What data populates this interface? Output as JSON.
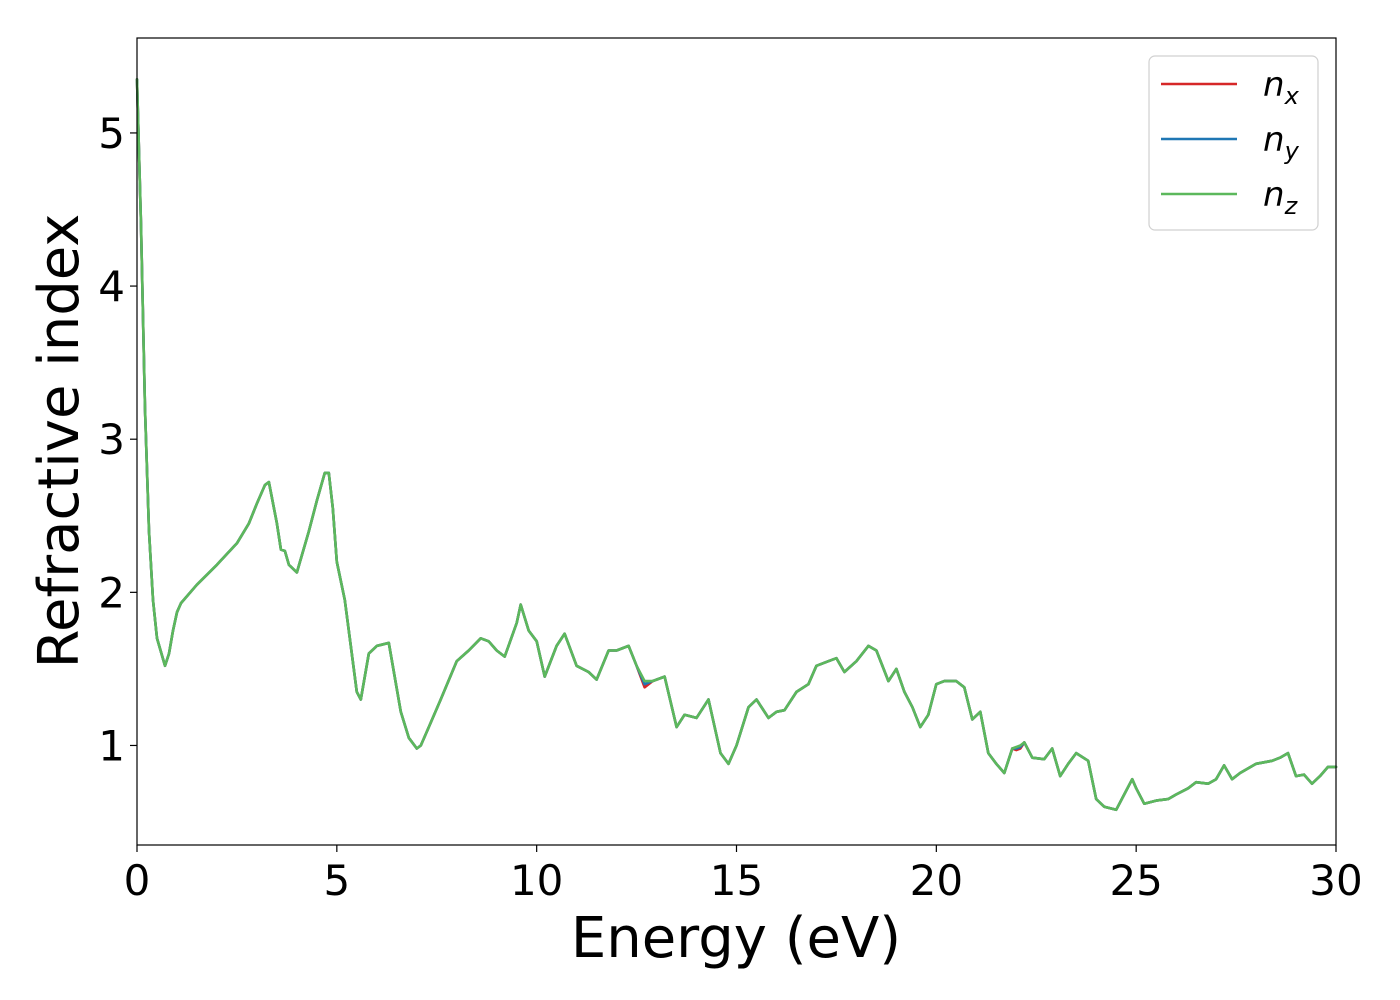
{
  "chart_data": {
    "type": "line",
    "xlabel": "Energy (eV)",
    "ylabel": "Refractive index",
    "xlim": [
      0,
      30
    ],
    "ylim": [
      0.35,
      5.62
    ],
    "xticks": [
      0,
      5,
      10,
      15,
      20,
      25,
      30
    ],
    "yticks": [
      1,
      2,
      3,
      4,
      5
    ],
    "xtick_labels": [
      "0",
      "5",
      "10",
      "15",
      "20",
      "25",
      "30"
    ],
    "ytick_labels": [
      "1",
      "2",
      "3",
      "4",
      "5"
    ],
    "grid": false,
    "legend_position": "top-right",
    "x": [
      0.0,
      0.1,
      0.2,
      0.3,
      0.4,
      0.5,
      0.7,
      0.8,
      0.9,
      1.0,
      1.1,
      1.5,
      2.0,
      2.5,
      2.8,
      3.0,
      3.2,
      3.3,
      3.5,
      3.6,
      3.7,
      3.8,
      4.0,
      4.1,
      4.3,
      4.5,
      4.7,
      4.8,
      4.9,
      5.0,
      5.2,
      5.5,
      5.6,
      5.8,
      6.0,
      6.3,
      6.6,
      6.8,
      7.0,
      7.1,
      7.3,
      7.6,
      8.0,
      8.3,
      8.6,
      8.8,
      9.0,
      9.2,
      9.5,
      9.6,
      9.8,
      10.0,
      10.2,
      10.5,
      10.7,
      11.0,
      11.3,
      11.5,
      11.8,
      12.0,
      12.3,
      12.5,
      12.7,
      12.9,
      13.2,
      13.5,
      13.7,
      14.0,
      14.3,
      14.6,
      14.8,
      15.0,
      15.3,
      15.5,
      15.8,
      16.0,
      16.2,
      16.5,
      16.8,
      17.0,
      17.3,
      17.5,
      17.7,
      18.0,
      18.3,
      18.5,
      18.8,
      19.0,
      19.2,
      19.4,
      19.6,
      19.8,
      20.0,
      20.2,
      20.5,
      20.7,
      20.9,
      21.1,
      21.3,
      21.5,
      21.7,
      21.9,
      22.0,
      22.1,
      22.2,
      22.4,
      22.7,
      22.9,
      23.1,
      23.3,
      23.5,
      23.8,
      24.0,
      24.2,
      24.5,
      24.7,
      24.9,
      25.0,
      25.2,
      25.5,
      25.8,
      26.0,
      26.3,
      26.5,
      26.8,
      27.0,
      27.2,
      27.4,
      27.6,
      28.0,
      28.4,
      28.6,
      28.8,
      29.0,
      29.2,
      29.4,
      29.6,
      29.8,
      30.0
    ],
    "series": [
      {
        "name": "n_x",
        "color": "#d62728",
        "values": [
          5.35,
          4.4,
          3.2,
          2.4,
          1.95,
          1.7,
          1.52,
          1.6,
          1.75,
          1.87,
          1.93,
          2.05,
          2.18,
          2.32,
          2.45,
          2.58,
          2.7,
          2.72,
          2.45,
          2.28,
          2.27,
          2.18,
          2.13,
          2.22,
          2.4,
          2.6,
          2.78,
          2.78,
          2.55,
          2.2,
          1.95,
          1.35,
          1.3,
          1.6,
          1.65,
          1.67,
          1.22,
          1.05,
          0.98,
          1.0,
          1.12,
          1.3,
          1.55,
          1.62,
          1.7,
          1.68,
          1.62,
          1.58,
          1.8,
          1.92,
          1.75,
          1.68,
          1.45,
          1.65,
          1.73,
          1.52,
          1.48,
          1.43,
          1.62,
          1.62,
          1.65,
          1.52,
          1.38,
          1.42,
          1.45,
          1.12,
          1.2,
          1.18,
          1.3,
          0.95,
          0.88,
          1.0,
          1.25,
          1.3,
          1.18,
          1.22,
          1.23,
          1.35,
          1.4,
          1.52,
          1.55,
          1.57,
          1.48,
          1.55,
          1.65,
          1.62,
          1.42,
          1.5,
          1.35,
          1.25,
          1.12,
          1.2,
          1.4,
          1.42,
          1.42,
          1.38,
          1.17,
          1.22,
          0.95,
          0.88,
          0.82,
          0.98,
          0.97,
          0.98,
          1.02,
          0.92,
          0.91,
          0.98,
          0.8,
          0.88,
          0.95,
          0.9,
          0.65,
          0.6,
          0.58,
          0.68,
          0.78,
          0.72,
          0.62,
          0.64,
          0.65,
          0.68,
          0.72,
          0.76,
          0.75,
          0.78,
          0.87,
          0.78,
          0.82,
          0.88,
          0.9,
          0.92,
          0.95,
          0.8,
          0.81,
          0.75,
          0.8,
          0.86,
          0.86
        ]
      },
      {
        "name": "n_y",
        "color": "#1f77b4",
        "values": [
          5.35,
          4.4,
          3.2,
          2.4,
          1.95,
          1.7,
          1.52,
          1.6,
          1.75,
          1.87,
          1.93,
          2.05,
          2.18,
          2.32,
          2.45,
          2.58,
          2.7,
          2.72,
          2.45,
          2.28,
          2.27,
          2.18,
          2.13,
          2.22,
          2.4,
          2.6,
          2.78,
          2.78,
          2.55,
          2.2,
          1.95,
          1.35,
          1.3,
          1.6,
          1.65,
          1.67,
          1.22,
          1.05,
          0.98,
          1.0,
          1.12,
          1.3,
          1.55,
          1.62,
          1.7,
          1.68,
          1.62,
          1.58,
          1.8,
          1.92,
          1.75,
          1.68,
          1.45,
          1.65,
          1.73,
          1.52,
          1.48,
          1.43,
          1.62,
          1.62,
          1.65,
          1.52,
          1.4,
          1.42,
          1.45,
          1.12,
          1.2,
          1.18,
          1.3,
          0.95,
          0.88,
          1.0,
          1.25,
          1.3,
          1.18,
          1.22,
          1.23,
          1.35,
          1.4,
          1.52,
          1.55,
          1.57,
          1.48,
          1.55,
          1.65,
          1.62,
          1.42,
          1.5,
          1.35,
          1.25,
          1.12,
          1.2,
          1.4,
          1.42,
          1.42,
          1.38,
          1.17,
          1.22,
          0.95,
          0.88,
          0.82,
          0.98,
          0.98,
          0.99,
          1.02,
          0.92,
          0.91,
          0.98,
          0.8,
          0.88,
          0.95,
          0.9,
          0.65,
          0.6,
          0.58,
          0.68,
          0.78,
          0.72,
          0.62,
          0.64,
          0.65,
          0.68,
          0.72,
          0.76,
          0.75,
          0.78,
          0.87,
          0.78,
          0.82,
          0.88,
          0.9,
          0.92,
          0.95,
          0.8,
          0.81,
          0.75,
          0.8,
          0.86,
          0.86
        ]
      },
      {
        "name": "n_z",
        "color": "#5cb85c",
        "values": [
          5.35,
          4.4,
          3.2,
          2.4,
          1.95,
          1.7,
          1.52,
          1.6,
          1.75,
          1.87,
          1.93,
          2.05,
          2.18,
          2.32,
          2.45,
          2.58,
          2.7,
          2.72,
          2.45,
          2.28,
          2.27,
          2.18,
          2.13,
          2.22,
          2.4,
          2.6,
          2.78,
          2.78,
          2.55,
          2.2,
          1.95,
          1.35,
          1.3,
          1.6,
          1.65,
          1.67,
          1.22,
          1.05,
          0.98,
          1.0,
          1.12,
          1.3,
          1.55,
          1.62,
          1.7,
          1.68,
          1.62,
          1.58,
          1.8,
          1.92,
          1.75,
          1.68,
          1.45,
          1.65,
          1.73,
          1.52,
          1.48,
          1.43,
          1.62,
          1.62,
          1.65,
          1.52,
          1.42,
          1.42,
          1.45,
          1.12,
          1.2,
          1.18,
          1.3,
          0.95,
          0.88,
          1.0,
          1.25,
          1.3,
          1.18,
          1.22,
          1.23,
          1.35,
          1.4,
          1.52,
          1.55,
          1.57,
          1.48,
          1.55,
          1.65,
          1.62,
          1.42,
          1.5,
          1.35,
          1.25,
          1.12,
          1.2,
          1.4,
          1.42,
          1.42,
          1.38,
          1.17,
          1.22,
          0.95,
          0.88,
          0.82,
          0.98,
          0.99,
          1.0,
          1.02,
          0.92,
          0.91,
          0.98,
          0.8,
          0.88,
          0.95,
          0.9,
          0.65,
          0.6,
          0.58,
          0.68,
          0.78,
          0.72,
          0.62,
          0.64,
          0.65,
          0.68,
          0.72,
          0.76,
          0.75,
          0.78,
          0.87,
          0.78,
          0.82,
          0.88,
          0.9,
          0.92,
          0.95,
          0.8,
          0.81,
          0.75,
          0.8,
          0.86,
          0.86
        ]
      }
    ],
    "legend": [
      {
        "base": "n",
        "sub": "x",
        "color": "#d62728"
      },
      {
        "base": "n",
        "sub": "y",
        "color": "#1f77b4"
      },
      {
        "base": "n",
        "sub": "z",
        "color": "#5cb85c"
      }
    ]
  }
}
